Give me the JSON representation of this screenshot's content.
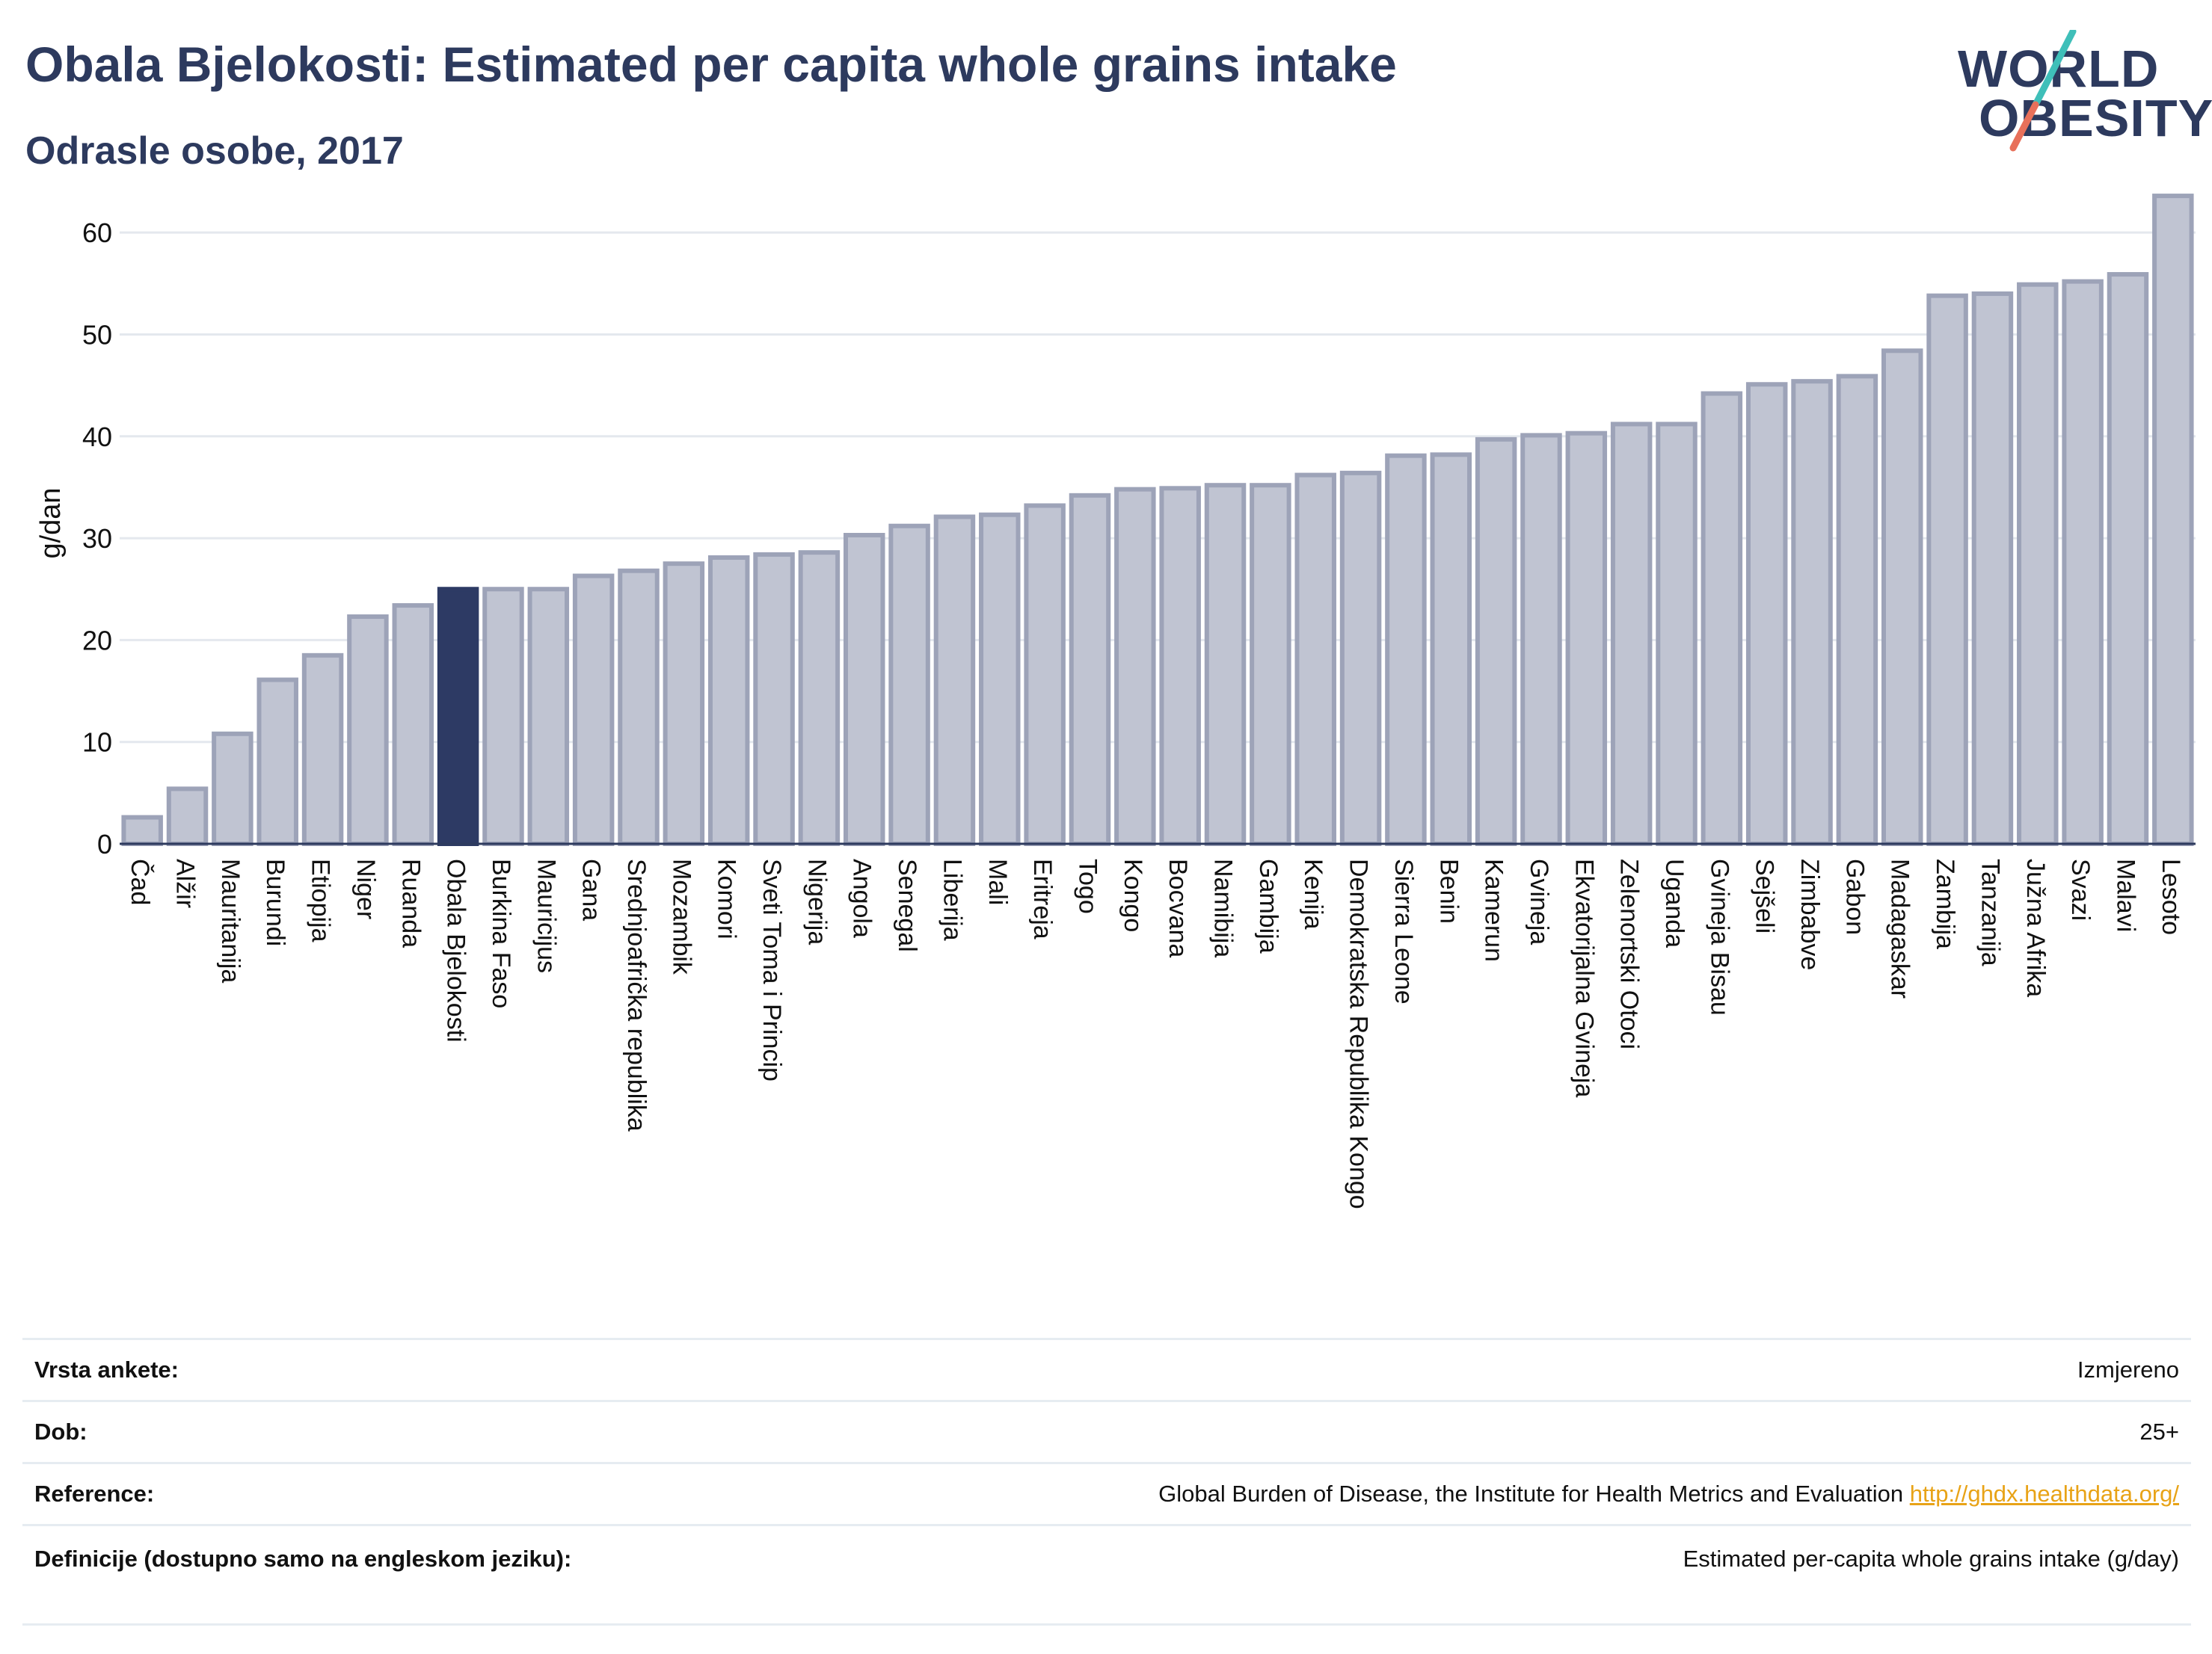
{
  "header": {
    "title": "Obala Bjelokosti: Estimated per capita whole grains intake",
    "subtitle": "Odrasle osobe, 2017"
  },
  "logo": {
    "line1": "WORLD",
    "line2": "OBESITY"
  },
  "colors": {
    "highlight": "#2d3a64",
    "bar": "#c0c4d2",
    "bar_edge": "#9da3b8",
    "grid": "#e4e8ee",
    "logo_teal": "#3fbfb9",
    "logo_coral": "#e8705a"
  },
  "chart_data": {
    "type": "bar",
    "ylabel": "g/dan",
    "ylim": [
      0,
      65
    ],
    "yticks": [
      0,
      10,
      20,
      30,
      40,
      50,
      60
    ],
    "grid": true,
    "highlight": "Obala Bjelokosti",
    "categories": [
      "Čad",
      "Alžir",
      "Mauritanija",
      "Burundi",
      "Etiopija",
      "Niger",
      "Ruanda",
      "Obala Bjelokosti",
      "Burkina Faso",
      "Mauricijus",
      "Gana",
      "Srednjoafrička republika",
      "Mozambik",
      "Komori",
      "Sveti Toma i Princip",
      "Nigerija",
      "Angola",
      "Senegal",
      "Liberija",
      "Mali",
      "Eritreja",
      "Togo",
      "Kongo",
      "Bocvana",
      "Namibija",
      "Gambija",
      "Kenija",
      "Demokratska Republika Kongo",
      "Sierra Leone",
      "Benin",
      "Kamerun",
      "Gvineja",
      "Ekvatorijalna Gvineja",
      "Zelenortski Otoci",
      "Uganda",
      "Gvineja Bisau",
      "Sejšeli",
      "Zimbabve",
      "Gabon",
      "Madagaskar",
      "Zambija",
      "Tanzanija",
      "Južna Afrika",
      "Svazi",
      "Malavi",
      "Lesoto"
    ],
    "values": [
      2.6,
      5.4,
      10.8,
      16.1,
      18.5,
      22.3,
      23.4,
      25.0,
      25.0,
      25.0,
      26.3,
      26.8,
      27.5,
      28.1,
      28.4,
      28.6,
      30.3,
      31.2,
      32.1,
      32.3,
      33.2,
      34.2,
      34.8,
      34.9,
      35.2,
      35.2,
      36.2,
      36.4,
      38.1,
      38.2,
      39.7,
      40.1,
      40.3,
      41.2,
      41.2,
      44.2,
      45.1,
      45.4,
      45.9,
      48.4,
      53.8,
      54.0,
      54.9,
      55.2,
      55.9,
      63.6
    ]
  },
  "info": [
    {
      "label": "Vrsta ankete:",
      "value": "Izmjereno"
    },
    {
      "label": "Dob:",
      "value": "25+"
    },
    {
      "label": "Reference:",
      "value": "Global Burden of Disease, the Institute for Health Metrics and Evaluation",
      "link": "http://ghdx.healthdata.org/"
    },
    {
      "label": "Definicije (dostupno samo na engleskom jeziku):",
      "value": "Estimated per-capita whole grains intake (g/day)"
    }
  ]
}
